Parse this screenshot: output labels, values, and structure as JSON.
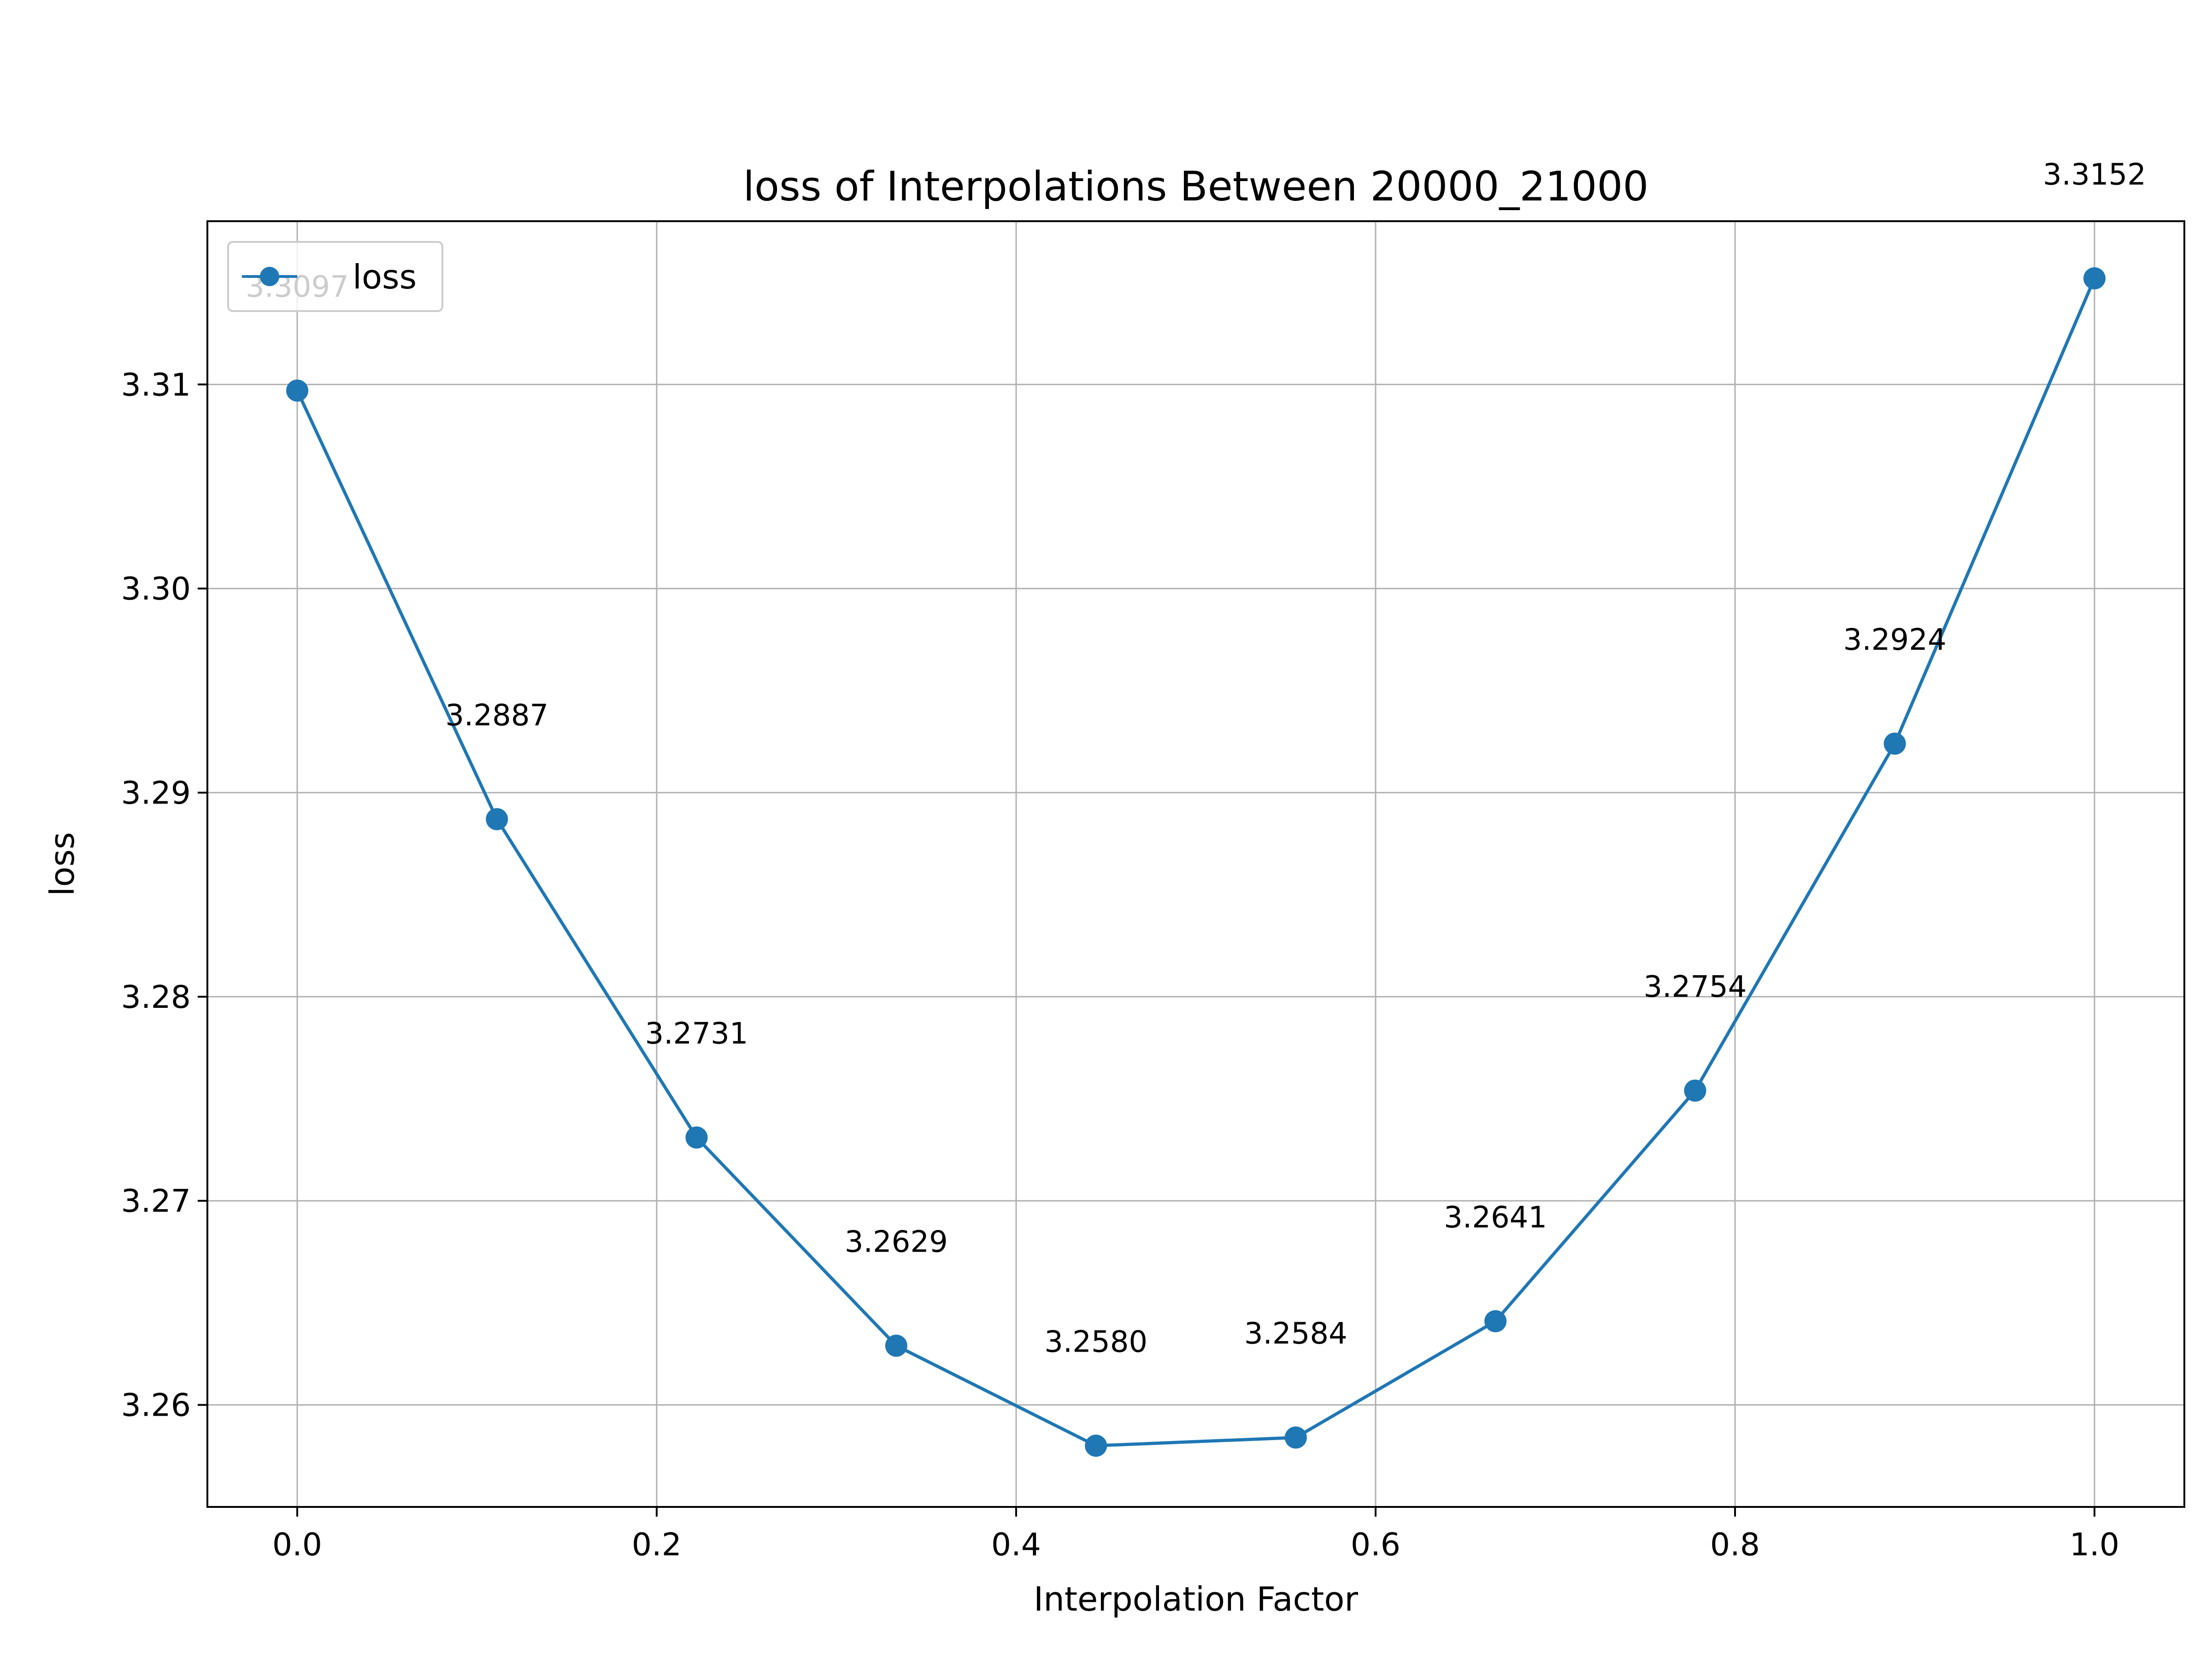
{
  "chart_data": {
    "type": "line",
    "title": "loss of Interpolations Between 20000_21000",
    "xlabel": "Interpolation Factor",
    "ylabel": "loss",
    "xlim": [
      -0.05,
      1.05
    ],
    "ylim": [
      3.255,
      3.318
    ],
    "xticks": [
      0.0,
      0.2,
      0.4,
      0.6,
      0.8,
      1.0
    ],
    "xtick_labels": [
      "0.0",
      "0.2",
      "0.4",
      "0.6",
      "0.8",
      "1.0"
    ],
    "yticks": [
      3.26,
      3.27,
      3.28,
      3.29,
      3.3,
      3.31
    ],
    "ytick_labels": [
      "3.26",
      "3.27",
      "3.28",
      "3.29",
      "3.30",
      "3.31"
    ],
    "grid": true,
    "legend": {
      "position": "upper-left",
      "entries": [
        "loss"
      ]
    },
    "series": [
      {
        "name": "loss",
        "color": "#1f77b4",
        "x": [
          0.0,
          0.1111,
          0.2222,
          0.3333,
          0.4444,
          0.5556,
          0.6667,
          0.7778,
          0.8889,
          1.0
        ],
        "y": [
          3.3097,
          3.2887,
          3.2731,
          3.2629,
          3.258,
          3.2584,
          3.2641,
          3.2754,
          3.2924,
          3.3152
        ]
      }
    ],
    "annotations": [
      {
        "x": 0.0,
        "y": 3.3097,
        "text": "3.3097"
      },
      {
        "x": 0.1111,
        "y": 3.2887,
        "text": "3.2887"
      },
      {
        "x": 0.2222,
        "y": 3.2731,
        "text": "3.2731"
      },
      {
        "x": 0.3333,
        "y": 3.2629,
        "text": "3.2629"
      },
      {
        "x": 0.4444,
        "y": 3.258,
        "text": "3.2580"
      },
      {
        "x": 0.5556,
        "y": 3.2584,
        "text": "3.2584"
      },
      {
        "x": 0.6667,
        "y": 3.2641,
        "text": "3.2641"
      },
      {
        "x": 0.7778,
        "y": 3.2754,
        "text": "3.2754"
      },
      {
        "x": 0.8889,
        "y": 3.2924,
        "text": "3.2924"
      },
      {
        "x": 1.0,
        "y": 3.3152,
        "text": "3.3152"
      }
    ]
  }
}
